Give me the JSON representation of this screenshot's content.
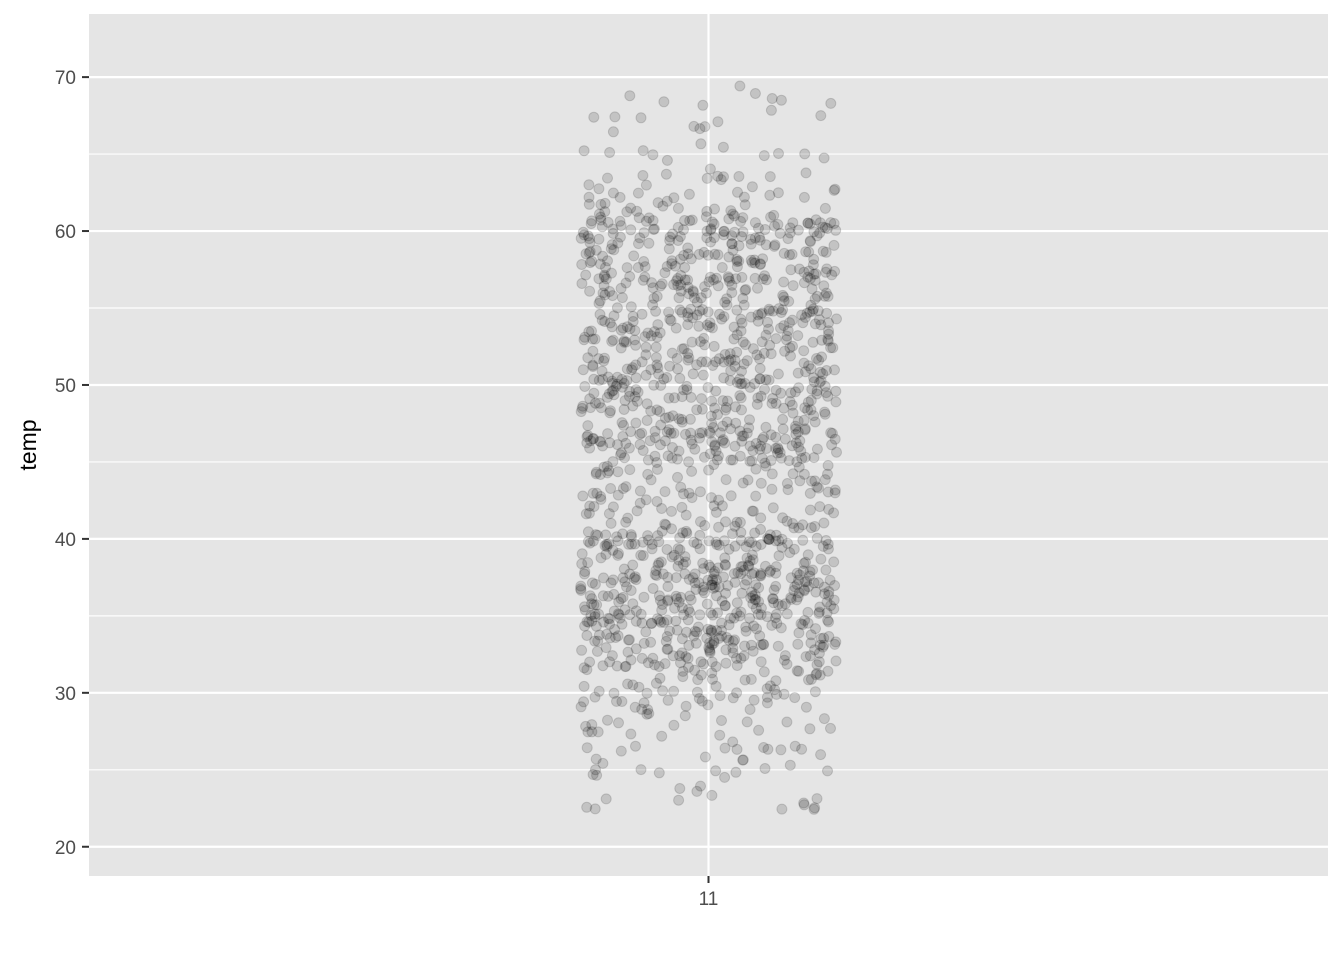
{
  "chart_data": {
    "type": "scatter",
    "style": "ggplot2 jitter strip plot",
    "title": "",
    "xlabel": "",
    "ylabel": "temp",
    "x_categories": [
      "11"
    ],
    "x_tick_labels": [
      "11"
    ],
    "ylim": [
      18.1,
      74.1
    ],
    "y_ticks": [
      20,
      30,
      40,
      50,
      60,
      70
    ],
    "y_tick_labels": [
      "20",
      "30",
      "40",
      "50",
      "60",
      "70"
    ],
    "y_minor_ticks": [
      25,
      35,
      45,
      55,
      65
    ],
    "grid": true,
    "panel_background": "#e5e5e5",
    "grid_color": "#ffffff",
    "point_color": "#000000",
    "point_alpha": 0.15,
    "jitter_width": 0.4,
    "point_count": 1500,
    "y_distribution": {
      "min": 20.5,
      "max": 71.6,
      "dense_bands": [
        {
          "center": 36,
          "spread": 4
        },
        {
          "center": 49.5,
          "spread": 3.5
        },
        {
          "center": 58,
          "spread": 3
        }
      ]
    },
    "legend": "none"
  }
}
